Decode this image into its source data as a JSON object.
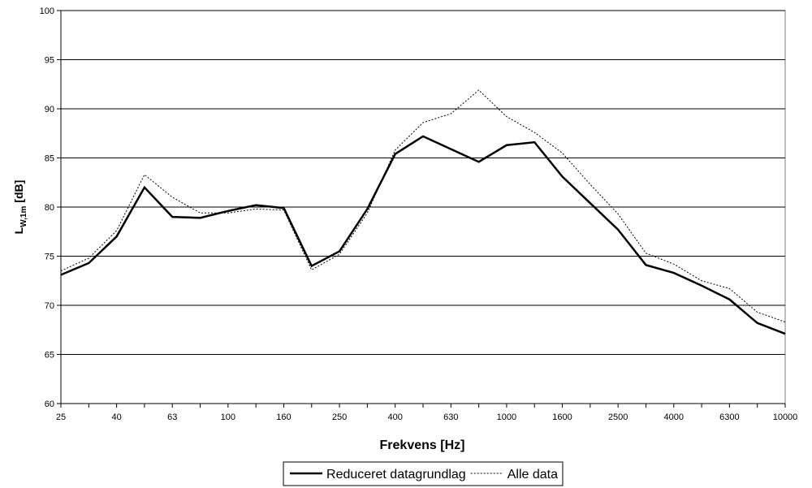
{
  "chart_data": {
    "type": "line",
    "x_label": "Frekvens [Hz]",
    "y_label": "L",
    "y_label_sub": "W,1m",
    "y_label_unit": "[dB]",
    "categories": [
      "25",
      null,
      "40",
      null,
      "63",
      null,
      "100",
      null,
      "160",
      null,
      "250",
      null,
      "400",
      null,
      "630",
      null,
      "1000",
      null,
      "1600",
      null,
      "2500",
      null,
      "4000",
      null,
      "6300",
      null,
      "10000"
    ],
    "series": [
      {
        "name": "Reduceret datagrundlag",
        "color": "#000000",
        "dash": "solid",
        "values": [
          73.1,
          74.3,
          77.0,
          82.0,
          79.0,
          78.9,
          79.6,
          80.2,
          79.9,
          74.0,
          75.5,
          79.8,
          85.4,
          87.2,
          85.9,
          84.6,
          86.3,
          86.6,
          83.1,
          80.4,
          77.7,
          74.1,
          73.3,
          72.0,
          70.6,
          68.2,
          67.1
        ]
      },
      {
        "name": "Alle data",
        "color": "#000000",
        "dash": "dotted",
        "values": [
          73.5,
          74.8,
          77.6,
          83.3,
          81.0,
          79.4,
          79.4,
          79.8,
          79.7,
          73.6,
          75.2,
          79.4,
          85.8,
          88.6,
          89.5,
          91.9,
          89.2,
          87.6,
          85.5,
          82.3,
          79.3,
          75.3,
          74.2,
          72.5,
          71.7,
          69.3,
          68.3
        ]
      }
    ],
    "ylim": [
      60,
      100
    ],
    "yticks": [
      60,
      65,
      70,
      75,
      80,
      85,
      90,
      95,
      100
    ],
    "grid": true,
    "legend": "bottom"
  }
}
